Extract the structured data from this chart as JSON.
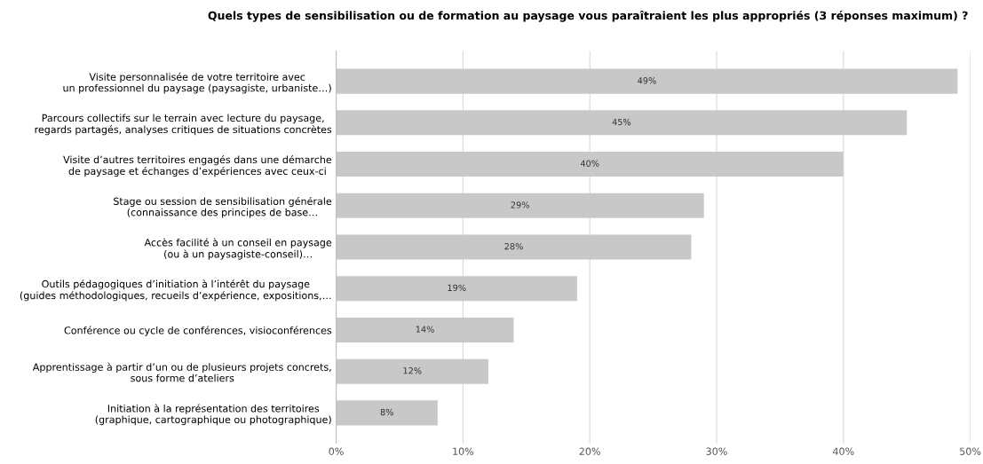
{
  "chart_data": {
    "type": "bar",
    "orientation": "horizontal",
    "title": "Quels types de sensibilisation ou de formation au paysage vous paraîtraient les plus appropriés (3 réponses maximum) ?",
    "categories": [
      "Visite personnalisée de votre territoire avec\nun professionnel du paysage (paysagiste, urbaniste…)",
      "Parcours collectifs sur le terrain avec lecture du paysage,\nregards partagés, analyses critiques de situations concrètes",
      "Visite d’autres territoires engagés dans une démarche\nde paysage et échanges d’expériences avec ceux-ci",
      "Stage ou session de sensibilisation générale\n(connaissance des principes de base…",
      "Accès facilité à un conseil en paysage\n(ou à un paysagiste-conseil)…",
      "Outils pédagogiques d’initiation à l’intérêt du paysage\n(guides méthodologiques, recueils d’expérience, expositions,…",
      "Conférence ou cycle de conférences, visioconférences",
      "Apprentissage à partir d’un ou de plusieurs projets concrets,\nsous forme d’ateliers",
      "Initiation à la représentation des territoires\n(graphique, cartographique ou photographique)"
    ],
    "values": [
      49,
      45,
      40,
      29,
      28,
      19,
      14,
      12,
      8
    ],
    "value_labels": [
      "49%",
      "45%",
      "40%",
      "29%",
      "28%",
      "19%",
      "14%",
      "12%",
      "8%"
    ],
    "color": "#c8c8c8",
    "xlim": [
      0,
      50
    ],
    "xticks": [
      {
        "value": 0,
        "label": "0%"
      },
      {
        "value": 10,
        "label": "10%"
      },
      {
        "value": 20,
        "label": "20%"
      },
      {
        "value": 30,
        "label": "30%"
      },
      {
        "value": 40,
        "label": "40%"
      },
      {
        "value": 50,
        "label": "50%"
      }
    ],
    "grid": "x"
  }
}
